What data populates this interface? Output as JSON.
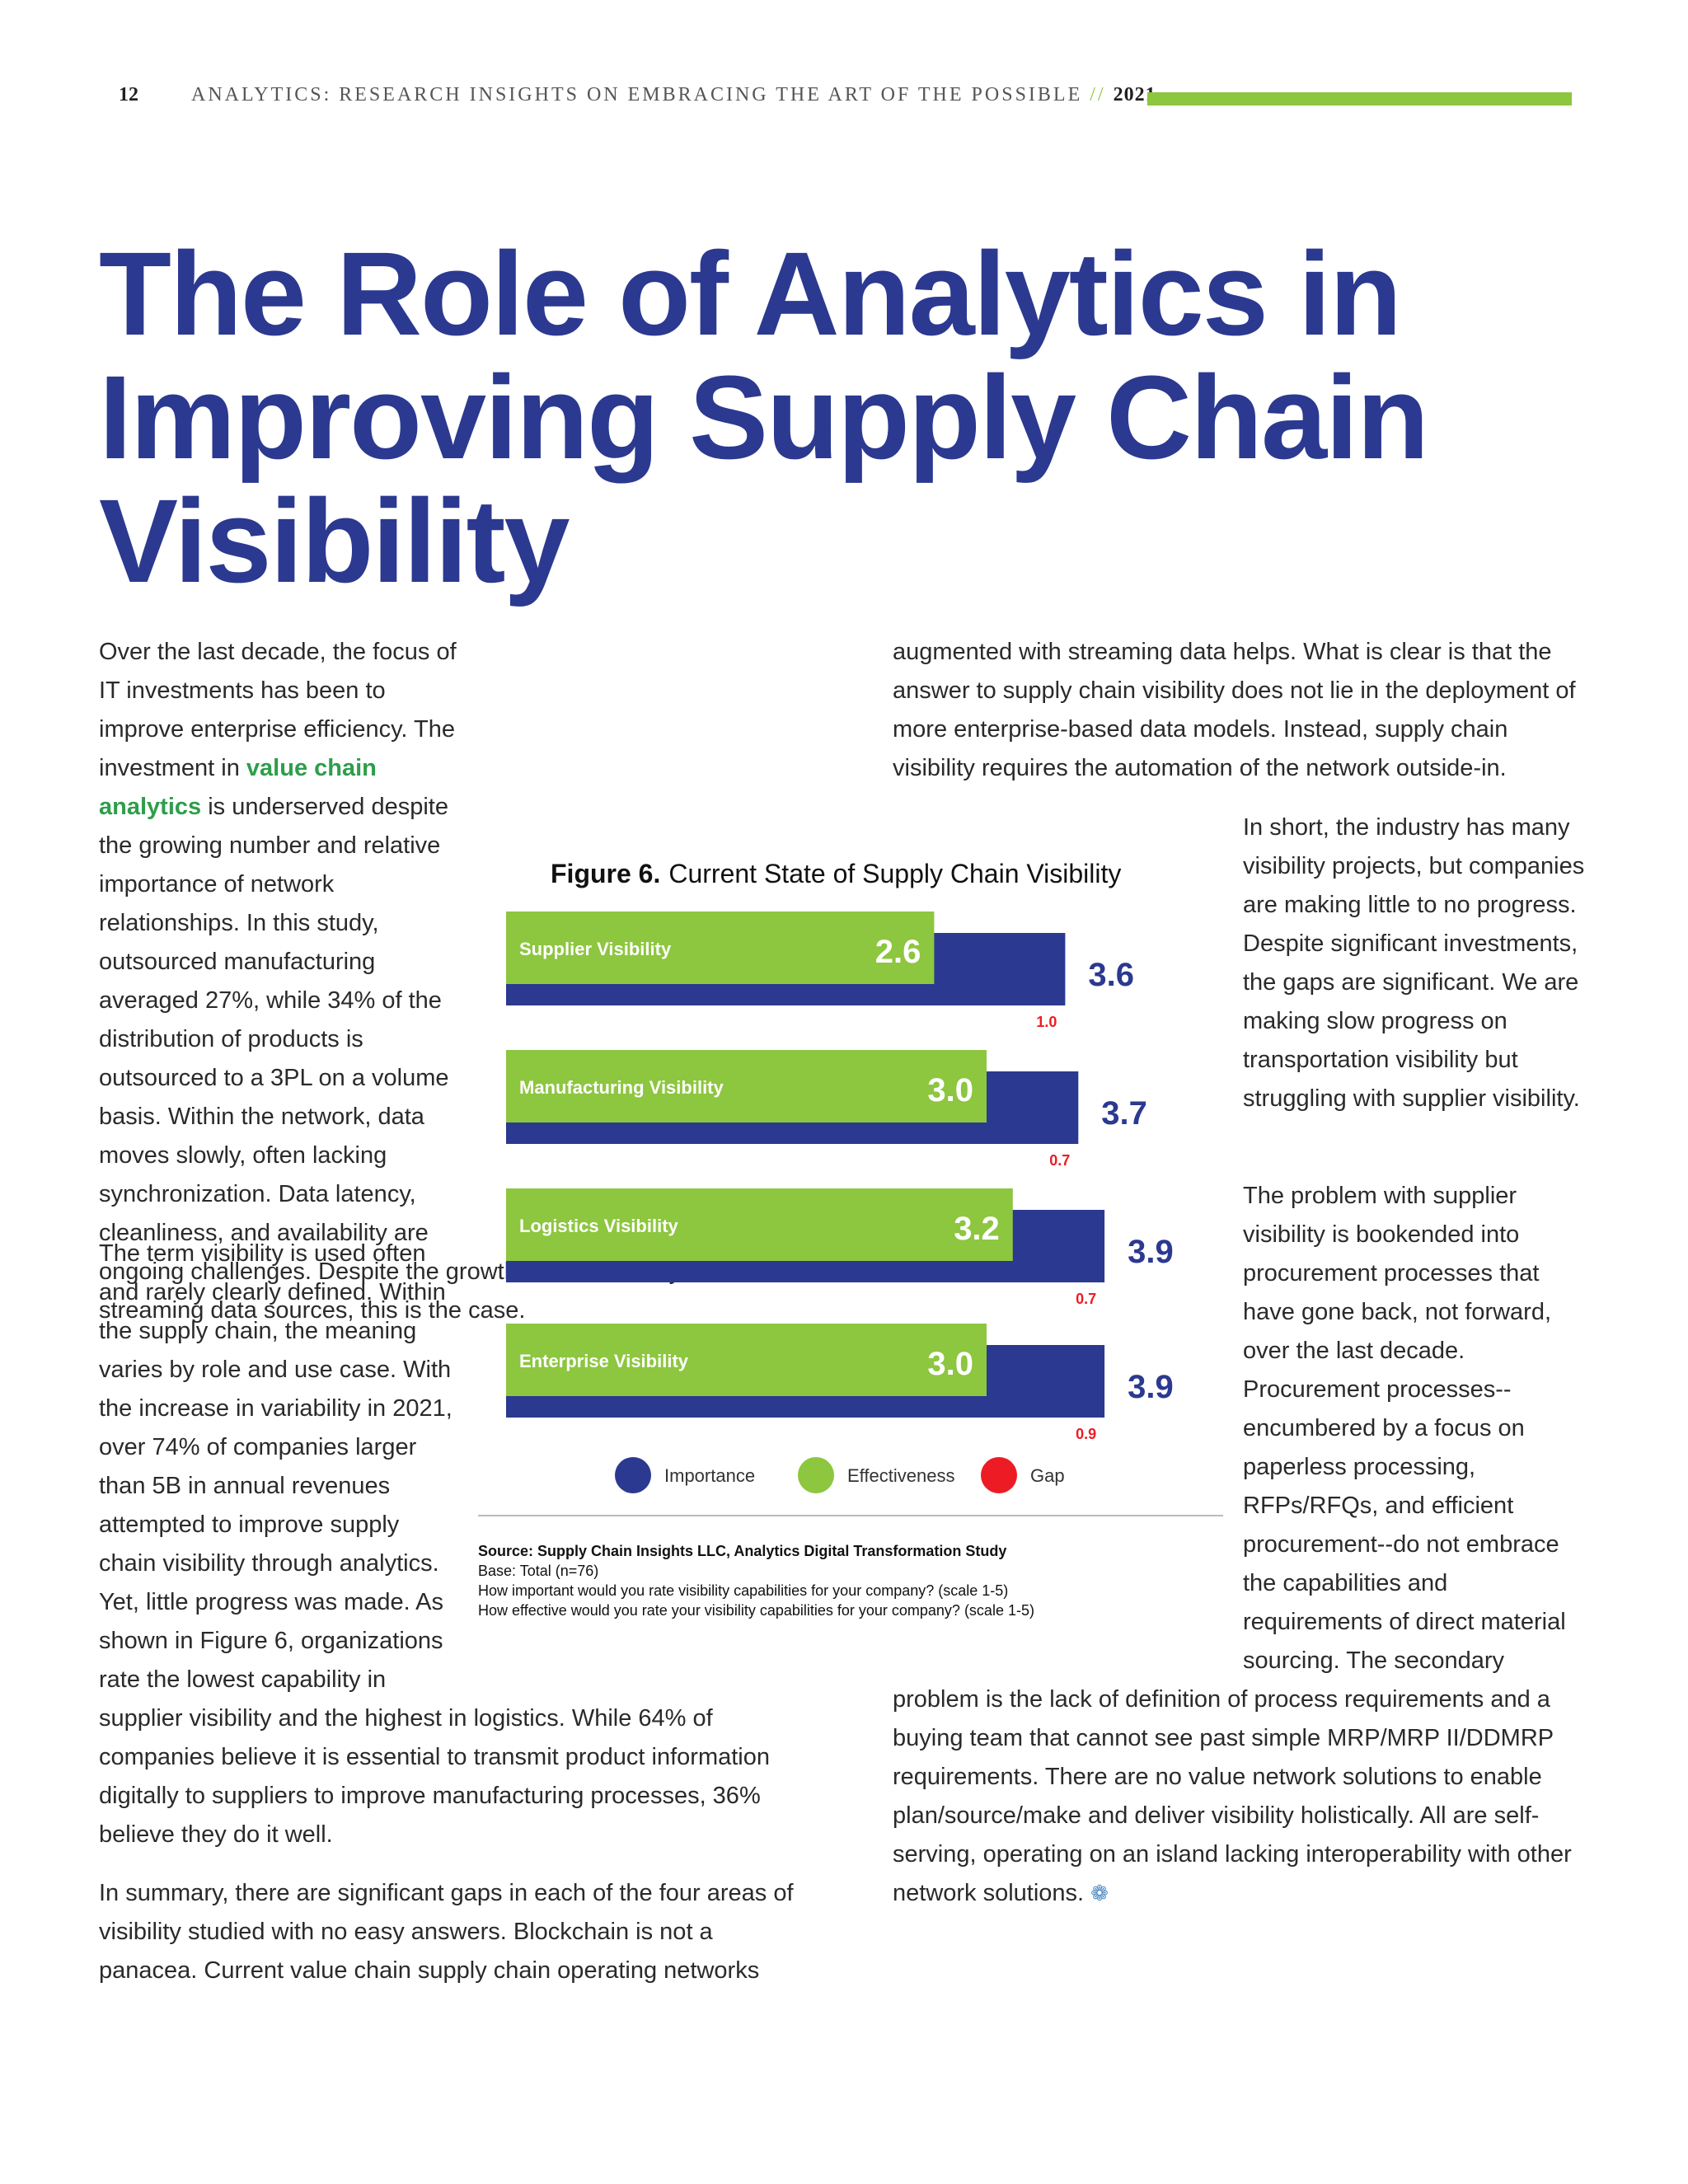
{
  "header": {
    "page_number": "12",
    "running_title": "ANALYTICS: RESEARCH INSIGHTS ON EMBRACING THE ART OF THE POSSIBLE",
    "separator": "//",
    "year": "2021"
  },
  "article": {
    "title": "The Role of Analytics in Improving Supply Chain Visibility"
  },
  "left_column": {
    "p1_before": "Over the last decade, the focus of IT investments has been to improve enterprise efficiency. The investment in ",
    "p1_highlight": "value chain analytics",
    "p1_after": " is underserved despite the growing number and relative importance of network relationships. In this study, outsourced manufacturing averaged 27%, while 34% of the distribution of products is outsourced to a 3PL on a volume basis. Within the network, data moves slowly, often lacking synchronization. Data latency, cleanliness, and availability are ongoing challenges. Despite the growth and availability of new streaming data sources, this is the case.",
    "p2": "The term visibility is used often and rarely clearly defined. Within the supply chain, the meaning varies by role and use case. With the increase in variability in 2021, over 74% of companies larger than 5B in annual revenues attempted to improve supply chain visibility through analytics. Yet, little progress was made. As shown in Figure 6, organizations rate the lowest capability in supplier visibility and the highest in logistics. While 64% of companies believe it is essential to transmit product information digitally to suppliers to improve manufacturing processes, 36% believe they do it well.",
    "p3": "In summary, there are significant gaps in each of the four areas of visibility studied with no easy answers. Blockchain is not a panacea. Current value chain supply chain operating networks"
  },
  "right_column": {
    "p1": "augmented with streaming data helps. What is clear is that the answer to supply chain visibility does not lie in the deployment of more enterprise-based data models. Instead, supply chain visibility requires the automation of the network outside-in.",
    "p2": "In short, the industry has many visibility projects, but companies are making little to no progress. Despite significant investments, the gaps are significant. We are making slow progress on transportation visibility but struggling with supplier visibility.",
    "p3": "The problem with supplier visibility is bookended into procurement processes that have gone back, not forward, over the last decade. Procurement processes--encumbered by a focus on paperless processing, RFPs/RFQs, and efficient procurement--do not embrace the capabilities and requirements of direct material sourcing. The secondary problem is the lack of definition of process requirements and a buying team that cannot see past simple MRP/MRP II/DDMRP requirements. There are no value network solutions to enable plan/source/make and deliver visibility holistically. All are self-serving, operating on an island lacking interoperability with other network solutions."
  },
  "figure": {
    "label": "Figure 6.",
    "caption": "Current State of Supply Chain Visibility",
    "source_label": "Source: Supply Chain Insights LLC, Analytics Digital Transformation Study",
    "base": "Base: Total (n=76)",
    "q1": "How important would you rate visibility capabilities for your company?  (scale 1-5)",
    "q2": "How effective would you rate your visibility capabilities for your company? (scale 1-5)"
  },
  "chart_data": {
    "type": "bar",
    "orientation": "horizontal",
    "scale": [
      1,
      5
    ],
    "categories": [
      "Supplier Visibility",
      "Manufacturing Visibility",
      "Logistics Visibility",
      "Enterprise Visibility"
    ],
    "series": [
      {
        "name": "Importance",
        "values": [
          3.6,
          3.7,
          3.9,
          3.9
        ],
        "color": "#2b3990"
      },
      {
        "name": "Effectiveness",
        "values": [
          2.6,
          3.0,
          3.2,
          3.0
        ],
        "color": "#8dc63f"
      },
      {
        "name": "Gap",
        "values": [
          1.0,
          0.7,
          0.7,
          0.9
        ],
        "color": "#ed1c24"
      }
    ],
    "value_labels": {
      "importance": [
        "3.6",
        "3.7",
        "3.9",
        "3.9"
      ],
      "effectiveness": [
        "2.6",
        "3.0",
        "3.2",
        "3.0"
      ],
      "gap": [
        "1.0",
        "0.7",
        "0.7",
        "0.9"
      ]
    },
    "legend_position": "bottom"
  },
  "colors": {
    "title": "#2b3990",
    "accent_green": "#8dc63f",
    "highlight_text": "#2e9e4b",
    "gap_red": "#ed1c24"
  },
  "icons": {
    "end_mark": "flower-end-icon"
  }
}
